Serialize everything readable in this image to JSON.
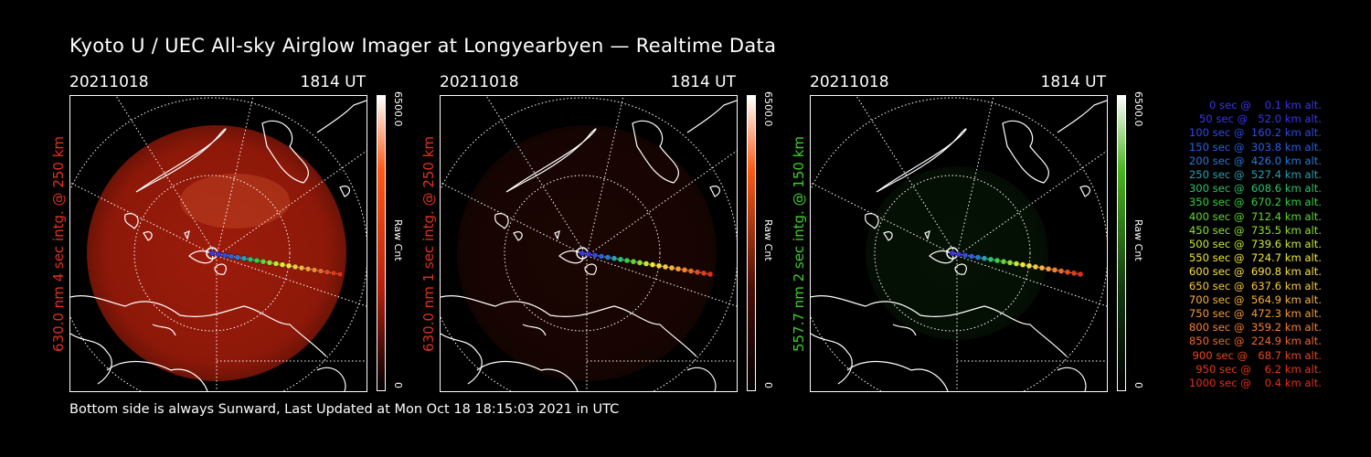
{
  "title": "Kyoto U / UEC All-sky Airglow Imager at Longyearbyen — Realtime Data",
  "footer": "Bottom side is always Sunward, Last Updated at Mon Oct 18 18:15:03 2021 in UTC",
  "colors": {
    "red_label": "#e0321e",
    "green_label": "#3ccf2a"
  },
  "panels": [
    {
      "date": "20211018",
      "time": "1814 UT",
      "side_label": "630.0 nm 4 sec intg. @ 250 km",
      "side_color": "#e0321e",
      "cbar_max": "6500.0",
      "cbar_unit": "Raw Cnt",
      "cbar_min": "0",
      "cbar_top_color": "#ff5a14",
      "glow_color": "#b8200c",
      "glow_level": 0.85
    },
    {
      "date": "20211018",
      "time": "1814 UT",
      "side_label": "630.0 nm 1 sec intg. @ 250 km",
      "side_color": "#e0321e",
      "cbar_max": "6500.0",
      "cbar_unit": "Raw Cnt",
      "cbar_min": "0",
      "cbar_top_color": "#ff5a14",
      "glow_color": "#4a0e06",
      "glow_level": 0.35
    },
    {
      "date": "20211018",
      "time": "1814 UT",
      "side_label": "557.7 nm 2 sec intg. @ 150 km",
      "side_color": "#3ccf2a",
      "cbar_max": "6500.0",
      "cbar_unit": "Raw Cnt",
      "cbar_min": "0",
      "cbar_top_color": "#4ab41e",
      "glow_color": "#123a10",
      "glow_level": 0.3
    }
  ],
  "legend": [
    {
      "text": "   0 sec @    0.1 km alt.",
      "color": "#3a36e8"
    },
    {
      "text": "  50 sec @   52.0 km alt.",
      "color": "#3a36e8"
    },
    {
      "text": " 100 sec @  160.2 km alt.",
      "color": "#2f48e8"
    },
    {
      "text": " 150 sec @  303.8 km alt.",
      "color": "#2860e0"
    },
    {
      "text": " 200 sec @  426.0 km alt.",
      "color": "#2878d8"
    },
    {
      "text": " 250 sec @  527.4 km alt.",
      "color": "#2aa0b0"
    },
    {
      "text": " 300 sec @  608.6 km alt.",
      "color": "#30c070"
    },
    {
      "text": " 350 sec @  670.2 km alt.",
      "color": "#36d040"
    },
    {
      "text": " 400 sec @  712.4 km alt.",
      "color": "#60d830"
    },
    {
      "text": " 450 sec @  735.5 km alt.",
      "color": "#90e030"
    },
    {
      "text": " 500 sec @  739.6 km alt.",
      "color": "#c8e830"
    },
    {
      "text": " 550 sec @  724.7 km alt.",
      "color": "#f0e830"
    },
    {
      "text": " 600 sec @  690.8 km alt.",
      "color": "#f8e040"
    },
    {
      "text": " 650 sec @  637.6 km alt.",
      "color": "#f8c840"
    },
    {
      "text": " 700 sec @  564.9 km alt.",
      "color": "#f8b040"
    },
    {
      "text": " 750 sec @  472.3 km alt.",
      "color": "#f89838"
    },
    {
      "text": " 800 sec @  359.2 km alt.",
      "color": "#f88030"
    },
    {
      "text": " 850 sec @  224.9 km alt.",
      "color": "#f06828"
    },
    {
      "text": " 900 sec @   68.7 km alt.",
      "color": "#e84820"
    },
    {
      "text": " 950 sec @    6.2 km alt.",
      "color": "#e43818"
    },
    {
      "text": "1000 sec @    0.4 km alt.",
      "color": "#e03018"
    }
  ]
}
